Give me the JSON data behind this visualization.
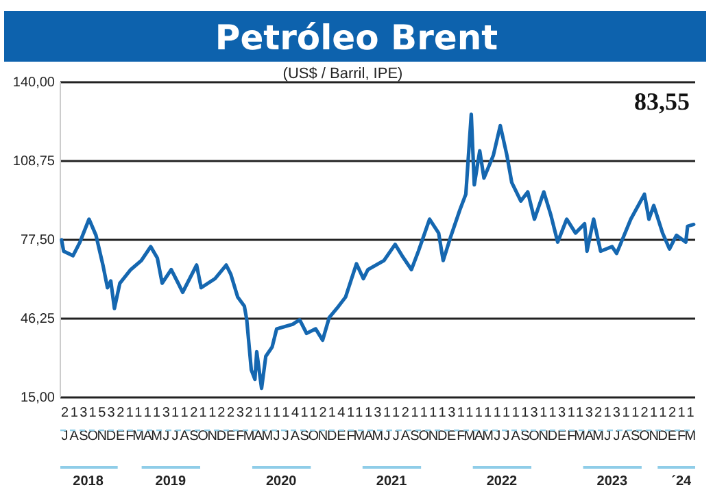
{
  "chart_data": {
    "type": "line",
    "title": "Petróleo Brent",
    "subtitle": "(US$ / Barril, IPE)",
    "annotations": [
      "83,55"
    ],
    "x2lim": [
      "2018-07-01",
      "2024-04-01"
    ],
    "x2ticks": [
      {
        "value": "2018-10-01",
        "label": "2018"
      },
      {
        "value": "2019-07-01",
        "label": "2019"
      },
      {
        "value": "2020-07-01",
        "label": "2020"
      },
      {
        "value": "2021-07-01",
        "label": "2021"
      },
      {
        "value": "2022-07-01",
        "label": "2022"
      },
      {
        "value": "2023-07-01",
        "label": "2023"
      },
      {
        "value": "2024-02-15",
        "label": "´24"
      }
    ],
    "xlim": [
      "2018-07-01",
      "2024-04-01"
    ],
    "xticks": [
      {
        "value": "2018-07-16",
        "label": "2\nJ"
      },
      {
        "value": "2018-08-16",
        "label": "1\nA"
      },
      {
        "value": "2018-09-16",
        "label": "3\nS"
      },
      {
        "value": "2018-10-16",
        "label": "1\nO"
      },
      {
        "value": "2018-11-16",
        "label": "5\nN"
      },
      {
        "value": "2018-12-16",
        "label": "3\nD"
      },
      {
        "value": "2019-01-16",
        "label": "2\nE"
      },
      {
        "value": "2019-02-16",
        "label": "1\nF"
      },
      {
        "value": "2019-03-16",
        "label": "1\nM"
      },
      {
        "value": "2019-04-16",
        "label": "1\nA"
      },
      {
        "value": "2019-05-16",
        "label": "1\nM"
      },
      {
        "value": "2019-06-16",
        "label": "3\nJ"
      },
      {
        "value": "2019-07-16",
        "label": "1\nJ"
      },
      {
        "value": "2019-08-16",
        "label": "1\nA"
      },
      {
        "value": "2019-09-16",
        "label": "2\nS"
      },
      {
        "value": "2019-10-16",
        "label": "1\nO"
      },
      {
        "value": "2019-11-16",
        "label": "1\nN"
      },
      {
        "value": "2019-12-16",
        "label": "2\nD"
      },
      {
        "value": "2020-01-16",
        "label": "2\nE"
      },
      {
        "value": "2020-02-16",
        "label": "3\nF"
      },
      {
        "value": "2020-03-16",
        "label": "2\nM"
      },
      {
        "value": "2020-04-16",
        "label": "1\nA"
      },
      {
        "value": "2020-05-16",
        "label": "1\nM"
      },
      {
        "value": "2020-06-16",
        "label": "1\nJ"
      },
      {
        "value": "2020-07-16",
        "label": "1\nJ"
      },
      {
        "value": "2020-08-16",
        "label": "4\nA"
      },
      {
        "value": "2020-09-16",
        "label": "1\nS"
      },
      {
        "value": "2020-10-16",
        "label": "1\nO"
      },
      {
        "value": "2020-11-16",
        "label": "2\nN"
      },
      {
        "value": "2020-12-16",
        "label": "1\nD"
      },
      {
        "value": "2021-01-16",
        "label": "4\nE"
      },
      {
        "value": "2021-02-16",
        "label": "1\nF"
      },
      {
        "value": "2021-03-16",
        "label": "1\nM"
      },
      {
        "value": "2021-04-16",
        "label": "1\nA"
      },
      {
        "value": "2021-05-16",
        "label": "3\nM"
      },
      {
        "value": "2021-06-16",
        "label": "1\nJ"
      },
      {
        "value": "2021-07-16",
        "label": "1\nJ"
      },
      {
        "value": "2021-08-16",
        "label": "2\nA"
      },
      {
        "value": "2021-09-16",
        "label": "1\nS"
      },
      {
        "value": "2021-10-16",
        "label": "1\nO"
      },
      {
        "value": "2021-11-16",
        "label": "1\nN"
      },
      {
        "value": "2021-12-16",
        "label": "1\nD"
      },
      {
        "value": "2022-01-16",
        "label": "3\nE"
      },
      {
        "value": "2022-02-16",
        "label": "1\nF"
      },
      {
        "value": "2022-03-16",
        "label": "1\nM"
      },
      {
        "value": "2022-04-16",
        "label": "1\nA"
      },
      {
        "value": "2022-05-16",
        "label": "1\nM"
      },
      {
        "value": "2022-06-16",
        "label": "1\nJ"
      },
      {
        "value": "2022-07-16",
        "label": "1\nJ"
      },
      {
        "value": "2022-08-16",
        "label": "1\nA"
      },
      {
        "value": "2022-09-16",
        "label": "1\nS"
      },
      {
        "value": "2022-10-16",
        "label": "3\nO"
      },
      {
        "value": "2022-11-16",
        "label": "1\nN"
      },
      {
        "value": "2022-12-16",
        "label": "1\nD"
      },
      {
        "value": "2023-01-16",
        "label": "3\nE"
      },
      {
        "value": "2023-02-16",
        "label": "1\nF"
      },
      {
        "value": "2023-03-16",
        "label": "1\nM"
      },
      {
        "value": "2023-04-16",
        "label": "3\nA"
      },
      {
        "value": "2023-05-16",
        "label": "2\nM"
      },
      {
        "value": "2023-06-16",
        "label": "1\nJ"
      },
      {
        "value": "2023-07-16",
        "label": "3\nJ"
      },
      {
        "value": "2023-08-16",
        "label": "1\nA"
      },
      {
        "value": "2023-09-16",
        "label": "1\nS"
      },
      {
        "value": "2023-10-16",
        "label": "2\nO"
      },
      {
        "value": "2023-11-16",
        "label": "1\nN"
      },
      {
        "value": "2023-12-16",
        "label": "1\nD"
      },
      {
        "value": "2024-01-16",
        "label": "2\nE"
      },
      {
        "value": "2024-02-16",
        "label": "1\nF"
      },
      {
        "value": "2024-03-16",
        "label": "1\nM"
      }
    ],
    "ylim": [
      15,
      140
    ],
    "yticks": [
      {
        "value": 15,
        "label": "15,00"
      },
      {
        "value": 46.25,
        "label": "46,25"
      },
      {
        "value": 77.5,
        "label": "77,50"
      },
      {
        "value": 108.75,
        "label": "108,75"
      },
      {
        "value": 140,
        "label": "140,00"
      }
    ],
    "grid": "y",
    "marker": "none",
    "line_style": "solid",
    "x": [
      "2018-07-05",
      "2018-07-12",
      "2018-08-12",
      "2018-09-04",
      "2018-10-04",
      "2018-10-27",
      "2018-11-19",
      "2018-12-04",
      "2018-12-15",
      "2018-12-27",
      "2019-01-14",
      "2019-02-19",
      "2019-03-26",
      "2019-04-26",
      "2019-05-18",
      "2019-06-03",
      "2019-07-03",
      "2019-07-26",
      "2019-08-10",
      "2019-09-25",
      "2019-10-10",
      "2019-11-25",
      "2020-01-01",
      "2020-01-16",
      "2020-02-08",
      "2020-03-01",
      "2020-03-09",
      "2020-03-24",
      "2020-04-05",
      "2020-04-11",
      "2020-04-27",
      "2020-05-11",
      "2020-06-01",
      "2020-06-16",
      "2020-08-08",
      "2020-08-31",
      "2020-09-23",
      "2020-10-23",
      "2020-11-15",
      "2020-12-07",
      "2021-01-07",
      "2021-01-30",
      "2021-03-07",
      "2021-03-30",
      "2021-04-14",
      "2021-06-06",
      "2021-07-13",
      "2021-08-05",
      "2021-09-05",
      "2021-09-28",
      "2021-11-04",
      "2021-12-04",
      "2021-12-19",
      "2022-01-12",
      "2022-02-12",
      "2022-03-04",
      "2022-03-22",
      "2022-04-01",
      "2022-04-19",
      "2022-05-03",
      "2022-06-03",
      "2022-06-26",
      "2022-07-18",
      "2022-08-03",
      "2022-09-02",
      "2022-09-25",
      "2022-10-17",
      "2022-11-17",
      "2022-12-10",
      "2023-01-02",
      "2023-02-01",
      "2023-03-02",
      "2023-04-01",
      "2023-04-09",
      "2023-05-01",
      "2023-05-24",
      "2023-07-01",
      "2023-07-16",
      "2023-09-01",
      "2023-10-16",
      "2023-10-31",
      "2023-11-16",
      "2023-12-15",
      "2024-01-07",
      "2024-01-30",
      "2024-03-01",
      "2024-03-07",
      "2024-03-27"
    ],
    "series": [
      {
        "color": "#1567b0",
        "values": [
          77.5,
          73,
          71.2,
          76.6,
          85.7,
          79.3,
          67.5,
          58.5,
          61.2,
          50.3,
          60.3,
          65.7,
          69.3,
          74.8,
          70.3,
          60.3,
          65.7,
          60.3,
          56.7,
          67.5,
          58.5,
          62.1,
          67.5,
          63.9,
          54.8,
          51.2,
          45.8,
          25.9,
          22.2,
          33.1,
          18.6,
          31.3,
          35,
          42.2,
          44,
          45.8,
          40.4,
          42.2,
          37.7,
          46.7,
          51.2,
          54.8,
          68,
          62.1,
          65.7,
          69.3,
          75.7,
          71.2,
          65.7,
          73,
          85.7,
          80.2,
          69.3,
          78.4,
          89.3,
          95.6,
          127.3,
          99.3,
          112.8,
          102,
          111,
          122.8,
          111,
          100.2,
          92.9,
          96.5,
          85.7,
          96.5,
          87.5,
          76.6,
          85.7,
          80.2,
          83.9,
          73,
          85.7,
          73,
          74.8,
          72.1,
          85.7,
          95.6,
          85.7,
          91.1,
          80.2,
          73.9,
          79.3,
          76.6,
          82.9,
          83.6
        ]
      }
    ]
  }
}
